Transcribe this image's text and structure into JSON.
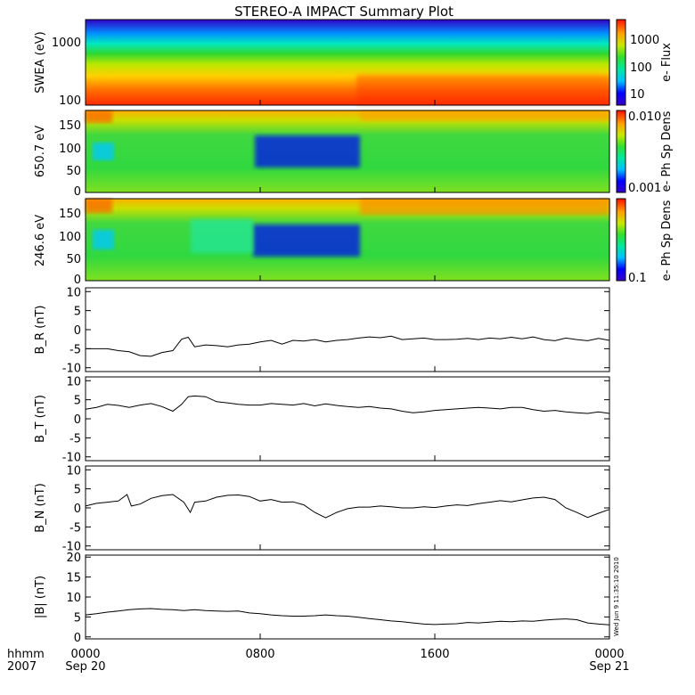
{
  "title": "STEREO-A IMPACT Summary Plot",
  "time_axis": {
    "labels_top": [
      "0000",
      "0800",
      "1600",
      "0000"
    ],
    "labels_bottom": [
      "Sep 20",
      "",
      "",
      "Sep 21"
    ],
    "corner_label_1": "hhmm",
    "corner_label_2": "2007",
    "ticks_hours": [
      0,
      8,
      16,
      24
    ]
  },
  "timestamp": "Wed Jun 9 11:35:10 2010",
  "colors": {
    "trace": "#000000",
    "frame": "#000000",
    "background": "#ffffff"
  },
  "chart_data": [
    {
      "type": "heatmap",
      "ylabel": "SWEA (eV)",
      "yscale": "log",
      "ylim": [
        90,
        2200
      ],
      "ytick_labels": [
        "1000",
        "100"
      ],
      "colorbar_label": "e- Flux",
      "colorbar_scale": "log",
      "colorbar_ticks": [
        "1000",
        "100",
        "10"
      ],
      "xlim_hours": [
        0,
        24
      ]
    },
    {
      "type": "heatmap",
      "ylabel": "650.7 eV",
      "ylim": [
        -5,
        180
      ],
      "ytick_labels": [
        "150",
        "100",
        "50",
        "0"
      ],
      "colorbar_label": "e- Ph Sp Dens",
      "colorbar_scale": "log",
      "colorbar_ticks": [
        "0.010",
        "0.001"
      ],
      "xlim_hours": [
        0,
        24
      ]
    },
    {
      "type": "heatmap",
      "ylabel": "246.6 eV",
      "ylim": [
        -5,
        180
      ],
      "ytick_labels": [
        "150",
        "100",
        "50",
        "0"
      ],
      "colorbar_label": "e- Ph Sp Dens",
      "colorbar_scale": "log",
      "colorbar_ticks": [
        "0.1"
      ],
      "xlim_hours": [
        0,
        24
      ]
    },
    {
      "type": "line",
      "ylabel": "B_R (nT)",
      "ylim": [
        -11,
        11
      ],
      "ytick_labels": [
        "10",
        "5",
        "0",
        "-5",
        "-10"
      ],
      "x": [
        0,
        0.5,
        1,
        1.5,
        2,
        2.5,
        3,
        3.5,
        4,
        4.4,
        4.7,
        5,
        5.5,
        6,
        6.5,
        7,
        7.5,
        8,
        8.5,
        9,
        9.5,
        10,
        10.5,
        11,
        11.5,
        12,
        12.5,
        13,
        13.5,
        14,
        14.5,
        15,
        15.5,
        16,
        16.5,
        17,
        17.5,
        18,
        18.5,
        19,
        19.5,
        20,
        20.5,
        21,
        21.5,
        22,
        22.5,
        23,
        23.5,
        24
      ],
      "y": [
        -5,
        -5,
        -5,
        -5.5,
        -5.8,
        -6.8,
        -7,
        -6,
        -5.5,
        -2.5,
        -2,
        -4.5,
        -4,
        -4.2,
        -4.5,
        -4,
        -3.8,
        -3.2,
        -2.8,
        -3.8,
        -2.8,
        -3,
        -2.6,
        -3.2,
        -2.8,
        -2.6,
        -2.2,
        -1.9,
        -2.1,
        -1.7,
        -2.6,
        -2.4,
        -2.2,
        -2.6,
        -2.6,
        -2.5,
        -2.3,
        -2.6,
        -2.2,
        -2.4,
        -2,
        -2.4,
        -1.9,
        -2.6,
        -2.9,
        -2.2,
        -2.6,
        -2.9,
        -2.3,
        -2.8
      ]
    },
    {
      "type": "line",
      "ylabel": "B_T (nT)",
      "ylim": [
        -11,
        11
      ],
      "ytick_labels": [
        "10",
        "5",
        "0",
        "-5",
        "-10"
      ],
      "x": [
        0,
        0.5,
        1,
        1.5,
        2,
        2.5,
        3,
        3.5,
        4,
        4.4,
        4.7,
        5,
        5.5,
        6,
        6.5,
        7,
        7.5,
        8,
        8.5,
        9,
        9.5,
        10,
        10.5,
        11,
        11.5,
        12,
        12.5,
        13,
        13.5,
        14,
        14.5,
        15,
        15.5,
        16,
        16.5,
        17,
        17.5,
        18,
        18.5,
        19,
        19.5,
        20,
        20.5,
        21,
        21.5,
        22,
        22.5,
        23,
        23.5,
        24
      ],
      "y": [
        2.5,
        3,
        3.8,
        3.5,
        3,
        3.6,
        4,
        3.2,
        2,
        3.8,
        5.8,
        6,
        5.8,
        4.5,
        4.2,
        3.8,
        3.6,
        3.6,
        4,
        3.8,
        3.6,
        4,
        3.4,
        3.9,
        3.5,
        3.2,
        3,
        3.2,
        2.8,
        2.6,
        2,
        1.6,
        1.8,
        2.2,
        2.4,
        2.6,
        2.8,
        3,
        2.8,
        2.6,
        3,
        3,
        2.4,
        2,
        2.2,
        1.8,
        1.6,
        1.4,
        1.8,
        1.4
      ]
    },
    {
      "type": "line",
      "ylabel": "B_N (nT)",
      "ylim": [
        -11,
        11
      ],
      "ytick_labels": [
        "10",
        "5",
        "0",
        "-5",
        "-10"
      ],
      "x": [
        0,
        0.5,
        1,
        1.5,
        1.9,
        2.1,
        2.5,
        3,
        3.5,
        4,
        4.5,
        4.8,
        5,
        5.5,
        6,
        6.5,
        7,
        7.5,
        8,
        8.5,
        9,
        9.5,
        10,
        10.5,
        11,
        11.5,
        12,
        12.5,
        13,
        13.5,
        14,
        14.5,
        15,
        15.5,
        16,
        16.5,
        17,
        17.5,
        18,
        18.5,
        19,
        19.5,
        20,
        20.5,
        21,
        21.5,
        22,
        22.5,
        23,
        23.5,
        24
      ],
      "y": [
        0.5,
        1.2,
        1.5,
        1.8,
        3.5,
        0.5,
        1,
        2.5,
        3.2,
        3.5,
        1.5,
        -1.2,
        1.5,
        1.8,
        2.8,
        3.3,
        3.4,
        3,
        1.8,
        2.2,
        1.5,
        1.6,
        0.8,
        -1.2,
        -2.6,
        -1.2,
        -0.2,
        0.2,
        0.2,
        0.5,
        0.3,
        0,
        0,
        0.3,
        0.1,
        0.5,
        0.8,
        0.6,
        1.1,
        1.5,
        1.9,
        1.6,
        2.1,
        2.6,
        2.8,
        2.2,
        0,
        -1.2,
        -2.5,
        -1.4,
        -0.4
      ]
    },
    {
      "type": "line",
      "ylabel": "|B| (nT)",
      "ylim": [
        -0.5,
        20.5
      ],
      "ytick_labels": [
        "20",
        "15",
        "10",
        "5",
        "0"
      ],
      "x": [
        0,
        0.5,
        1,
        1.5,
        2,
        2.5,
        3,
        3.5,
        4,
        4.5,
        5,
        5.5,
        6,
        6.5,
        7,
        7.5,
        8,
        8.5,
        9,
        9.5,
        10,
        10.5,
        11,
        11.5,
        12,
        12.5,
        13,
        13.5,
        14,
        14.5,
        15,
        15.5,
        16,
        16.5,
        17,
        17.5,
        18,
        18.5,
        19,
        19.5,
        20,
        20.5,
        21,
        21.5,
        22,
        22.5,
        23,
        23.5,
        24
      ],
      "y": [
        5.5,
        5.8,
        6.2,
        6.5,
        6.8,
        7,
        7.1,
        6.9,
        6.8,
        6.6,
        6.8,
        6.6,
        6.5,
        6.4,
        6.5,
        6,
        5.8,
        5.5,
        5.3,
        5.2,
        5.2,
        5.3,
        5.5,
        5.3,
        5.2,
        4.9,
        4.6,
        4.3,
        4,
        3.8,
        3.5,
        3.2,
        3.1,
        3.2,
        3.3,
        3.6,
        3.5,
        3.7,
        3.9,
        3.8,
        4,
        3.9,
        4.2,
        4.4,
        4.5,
        4.3,
        3.5,
        3.2,
        3
      ]
    }
  ]
}
